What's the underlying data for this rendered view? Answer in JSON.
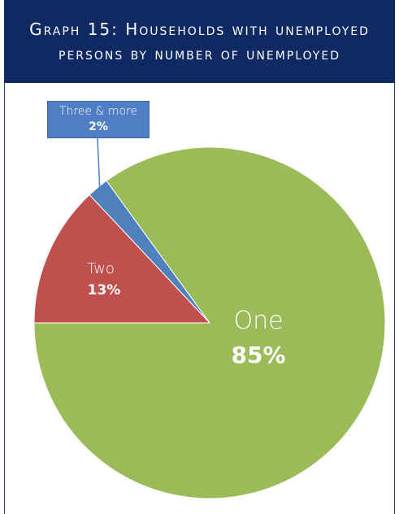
{
  "header": {
    "title": "Graph 15: Households with unemployed persons by number of unemployed"
  },
  "chart_data": {
    "type": "pie",
    "title": "Graph 15: Households with unemployed persons by number of unemployed",
    "categories": [
      "One",
      "Two",
      "Three & more"
    ],
    "values": [
      85,
      13,
      2
    ],
    "labels": [
      "85%",
      "13%",
      "2%"
    ],
    "colors": [
      "#9bbb59",
      "#c0504d",
      "#4f81bd"
    ],
    "label_color": "#ffffff",
    "legend": "none"
  }
}
